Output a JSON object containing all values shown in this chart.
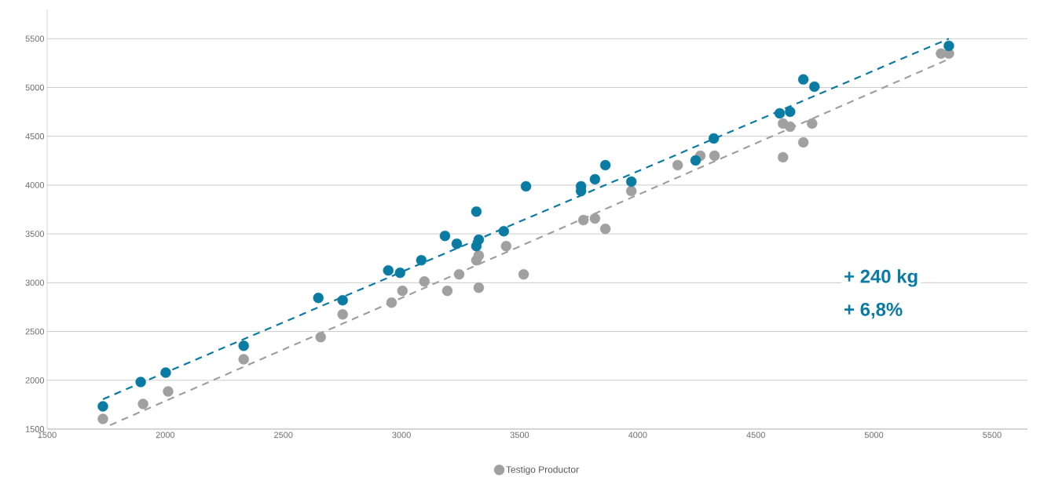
{
  "chart_data": {
    "type": "scatter",
    "marker": "circle",
    "grid": "y",
    "legend": "bottom",
    "xlim": [
      1500,
      5650
    ],
    "ylim": [
      1500,
      5800
    ],
    "xticks": [
      1500,
      2000,
      2500,
      3000,
      3500,
      4000,
      4500,
      5000,
      5500
    ],
    "yticks": [
      1500,
      2000,
      2500,
      3000,
      3500,
      4000,
      4500,
      5000,
      5500
    ],
    "annotations": [
      "+ 240 kg",
      "+ 6,8%"
    ],
    "series": [
      {
        "type": "line",
        "line_style": "dashed",
        "marker": "none",
        "color": "#a0a0a0",
        "x": [
          1766,
          5317
        ],
        "values": [
          1540,
          5291
        ]
      },
      {
        "type": "line",
        "line_style": "dashed",
        "marker": "none",
        "color": "#0a7ca3",
        "x": [
          1736,
          5317
        ],
        "values": [
          1806,
          5500
        ]
      },
      {
        "type": "scatter",
        "name": "Testigo Productor",
        "color": "#a0a0a0",
        "x": [
          1736,
          1906,
          2012,
          2332,
          2658,
          2751,
          2958,
          3004,
          3097,
          3194,
          3244,
          3317,
          3327,
          3327,
          3443,
          3517,
          3770,
          3819,
          3863,
          3973,
          4169,
          4265,
          4325,
          4615,
          4615,
          4645,
          4701,
          4738,
          5284,
          5317
        ],
        "values": [
          1605,
          1758,
          1886,
          2216,
          2442,
          2675,
          2796,
          2917,
          3013,
          2917,
          3086,
          3230,
          3279,
          2949,
          3375,
          3086,
          3641,
          3657,
          3552,
          3939,
          4204,
          4301,
          4301,
          4285,
          4631,
          4599,
          4438,
          4631,
          5347,
          5347
        ]
      },
      {
        "type": "scatter",
        "color": "#0a7ca3",
        "x": [
          1736,
          1896,
          2002,
          2332,
          2648,
          2751,
          2944,
          2994,
          3084,
          3184,
          3234,
          3317,
          3327,
          3317,
          3433,
          3527,
          3760,
          3760,
          3819,
          3863,
          3973,
          4245,
          4322,
          4601,
          4645,
          4701,
          4748,
          5317
        ],
        "values": [
          1733,
          1983,
          2079,
          2353,
          2844,
          2820,
          3126,
          3102,
          3230,
          3480,
          3399,
          3729,
          3440,
          3375,
          3528,
          3987,
          3939,
          3987,
          4059,
          4204,
          4035,
          4252,
          4478,
          4735,
          4752,
          5082,
          5009,
          5427
        ]
      }
    ]
  }
}
